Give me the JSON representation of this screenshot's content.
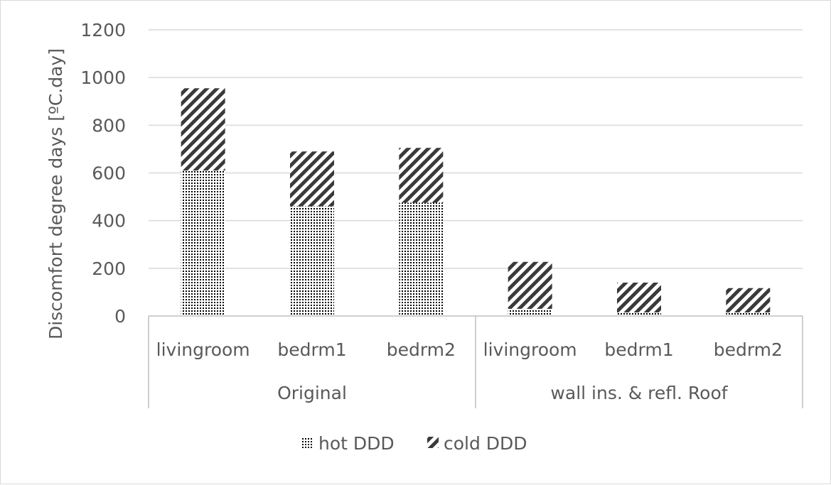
{
  "chart_data": {
    "type": "bar",
    "stacked": true,
    "ylabel": "Discomfort degree days [ºC.day]",
    "ylim": [
      0,
      1200
    ],
    "yticks": [
      0,
      200,
      400,
      600,
      800,
      1000,
      1200
    ],
    "grid": true,
    "legend_position": "bottom",
    "groups": [
      {
        "label": "Original",
        "categories": [
          "livingroom",
          "bedrm1",
          "bedrm2"
        ]
      },
      {
        "label": "wall ins. & refl. Roof",
        "categories": [
          "livingroom",
          "bedrm1",
          "bedrm2"
        ]
      }
    ],
    "categories": [
      "livingroom",
      "bedrm1",
      "bedrm2",
      "livingroom",
      "bedrm1",
      "bedrm2"
    ],
    "series": [
      {
        "name": "hot DDD",
        "values": [
          610,
          460,
          475,
          30,
          15,
          15
        ],
        "pattern": "dots",
        "color": "#000000"
      },
      {
        "name": "cold DDD",
        "values": [
          345,
          230,
          230,
          197,
          125,
          102
        ],
        "pattern": "diagonal-stripes",
        "color": "#3a3a3a"
      }
    ],
    "colors": {
      "gridline": "#d9d9d9",
      "axis_text": "#595959",
      "axis_line": "#bfbfbf"
    }
  }
}
